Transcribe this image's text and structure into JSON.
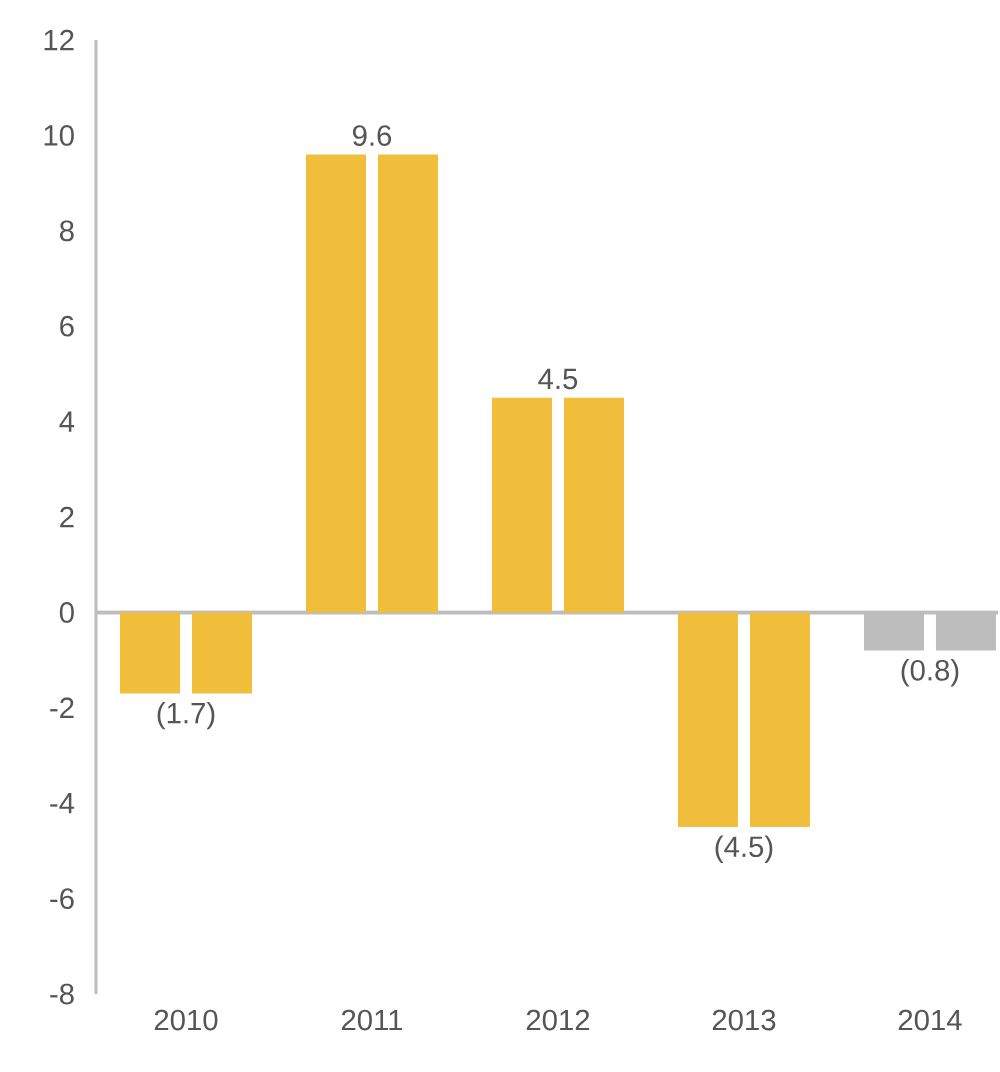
{
  "chart_data": {
    "type": "bar",
    "categories": [
      "2010",
      "2011",
      "2012",
      "2013",
      "2014"
    ],
    "series": [
      {
        "colors": [
          "#f0be3a",
          "#f0be3a",
          "#f0be3a",
          "#f0be3a",
          "#bdbdbd"
        ],
        "values": [
          -1.7,
          9.6,
          4.5,
          -4.5,
          -0.8
        ],
        "value_labels": [
          "(1.7)",
          "9.6",
          "4.5",
          "(4.5)",
          "(0.8)"
        ]
      },
      {
        "colors": [
          "#f0be3a",
          "#f0be3a",
          "#f0be3a",
          "#f0be3a",
          "#bdbdbd"
        ],
        "values": [
          -1.7,
          9.6,
          4.5,
          -4.5,
          -0.8
        ]
      }
    ],
    "ylim": [
      -8,
      12
    ],
    "yticks": [
      -8,
      -6,
      -4,
      -2,
      0,
      2,
      4,
      6,
      8,
      10,
      12
    ],
    "ref_lines": [
      {
        "axis": "y",
        "value": 0,
        "color": "#bdbdbd"
      }
    ],
    "grid": false
  }
}
